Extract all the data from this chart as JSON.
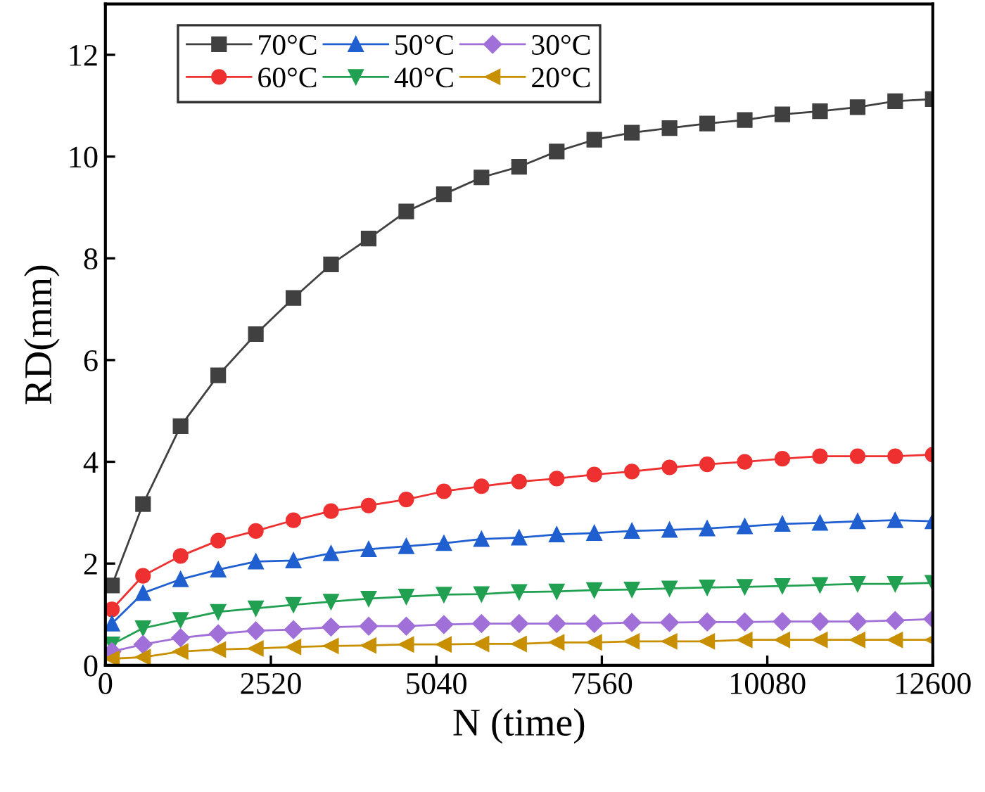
{
  "chart_data": {
    "type": "line",
    "xlabel": "N (time)",
    "ylabel": "RD(mm)",
    "x": [
      100,
      573,
      1145,
      1718,
      2291,
      2864,
      3436,
      4009,
      4582,
      5155,
      5727,
      6300,
      6873,
      7445,
      8018,
      8591,
      9164,
      9736,
      10309,
      10882,
      11455,
      12027,
      12600
    ],
    "xlim": [
      0,
      12600
    ],
    "xticks": [
      0,
      2520,
      5040,
      7560,
      10080,
      12600
    ],
    "ylim": [
      0,
      13
    ],
    "yticks": [
      0,
      2,
      4,
      6,
      8,
      10,
      12
    ],
    "grid": false,
    "legend": "top left",
    "line_style": "solid",
    "series": [
      {
        "name": "70°C",
        "color": "#404040",
        "marker": "square",
        "values": [
          1.57,
          3.17,
          4.7,
          5.7,
          6.51,
          7.22,
          7.88,
          8.39,
          8.92,
          9.26,
          9.59,
          9.8,
          10.1,
          10.33,
          10.47,
          10.56,
          10.65,
          10.72,
          10.83,
          10.89,
          10.97,
          11.09,
          11.13
        ]
      },
      {
        "name": "60°C",
        "color": "#ee3030",
        "marker": "circle",
        "values": [
          1.1,
          1.76,
          2.15,
          2.45,
          2.64,
          2.85,
          3.03,
          3.14,
          3.26,
          3.42,
          3.52,
          3.61,
          3.67,
          3.75,
          3.81,
          3.89,
          3.95,
          4.0,
          4.06,
          4.11,
          4.11,
          4.11,
          4.14
        ]
      },
      {
        "name": "50°C",
        "color": "#1f5fd0",
        "marker": "triangle",
        "values": [
          0.82,
          1.42,
          1.69,
          1.88,
          2.04,
          2.06,
          2.2,
          2.28,
          2.34,
          2.4,
          2.48,
          2.51,
          2.57,
          2.6,
          2.64,
          2.66,
          2.69,
          2.73,
          2.78,
          2.8,
          2.83,
          2.85,
          2.83
        ]
      },
      {
        "name": "40°C",
        "color": "#20a050",
        "marker": "triangle_down",
        "values": [
          0.41,
          0.73,
          0.89,
          1.05,
          1.12,
          1.19,
          1.25,
          1.31,
          1.35,
          1.39,
          1.4,
          1.44,
          1.45,
          1.48,
          1.49,
          1.51,
          1.53,
          1.54,
          1.56,
          1.58,
          1.6,
          1.6,
          1.62
        ]
      },
      {
        "name": "30°C",
        "color": "#a070d8",
        "marker": "diamond",
        "values": [
          0.27,
          0.41,
          0.54,
          0.62,
          0.68,
          0.7,
          0.75,
          0.77,
          0.77,
          0.8,
          0.82,
          0.82,
          0.82,
          0.82,
          0.84,
          0.84,
          0.85,
          0.85,
          0.86,
          0.86,
          0.86,
          0.88,
          0.91
        ]
      },
      {
        "name": "20°C",
        "color": "#c89000",
        "marker": "triangle_left",
        "values": [
          0.13,
          0.16,
          0.27,
          0.31,
          0.33,
          0.36,
          0.38,
          0.39,
          0.41,
          0.41,
          0.42,
          0.42,
          0.45,
          0.45,
          0.47,
          0.47,
          0.47,
          0.5,
          0.5,
          0.5,
          0.5,
          0.5,
          0.5
        ]
      }
    ]
  }
}
